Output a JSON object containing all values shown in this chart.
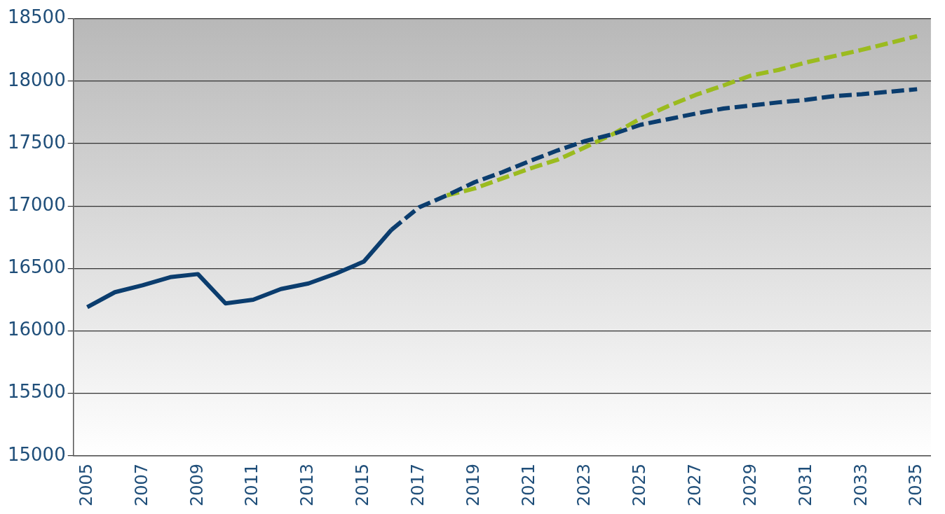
{
  "chart_data": {
    "type": "line",
    "categories": [
      "2005",
      null,
      "2007",
      null,
      "2009",
      null,
      "2011",
      null,
      "2013",
      null,
      "2015",
      null,
      "2017",
      null,
      "2019",
      null,
      "2021",
      null,
      "2023",
      null,
      "2025",
      null,
      "2027",
      null,
      "2029",
      null,
      "2031",
      null,
      "2033",
      null,
      "2035"
    ],
    "series": [
      {
        "color": "#0b3d6e",
        "line_style": "solid",
        "values": [
          16190,
          16310,
          16365,
          16430,
          16455,
          16220,
          16250,
          16335,
          16380,
          16460,
          16555,
          16810,
          null,
          null,
          null,
          null,
          null,
          null,
          null,
          null,
          null,
          null,
          null,
          null,
          null,
          null,
          null,
          null,
          null,
          null,
          null
        ]
      },
      {
        "color": "#0b3d6e",
        "line_style": "dashed",
        "values": [
          null,
          null,
          null,
          null,
          null,
          null,
          null,
          null,
          null,
          null,
          null,
          16810,
          16990,
          17085,
          17190,
          17270,
          17360,
          17445,
          17520,
          17575,
          17650,
          17695,
          17740,
          17780,
          17805,
          17830,
          17850,
          17880,
          17895,
          17915,
          17935
        ]
      },
      {
        "color": "#9bbb1f",
        "line_style": "dashed",
        "values": [
          null,
          null,
          null,
          null,
          null,
          null,
          null,
          null,
          null,
          null,
          null,
          null,
          null,
          17085,
          17140,
          17220,
          17300,
          17370,
          17470,
          17575,
          17700,
          17800,
          17890,
          17965,
          18045,
          18090,
          18150,
          18200,
          18250,
          18305,
          18360
        ]
      }
    ],
    "ylim": [
      15000,
      18500
    ],
    "yticks": [
      15000,
      15500,
      16000,
      16500,
      17000,
      17500,
      18000,
      18500
    ],
    "grid": "y",
    "legend": false,
    "marker": "none"
  }
}
